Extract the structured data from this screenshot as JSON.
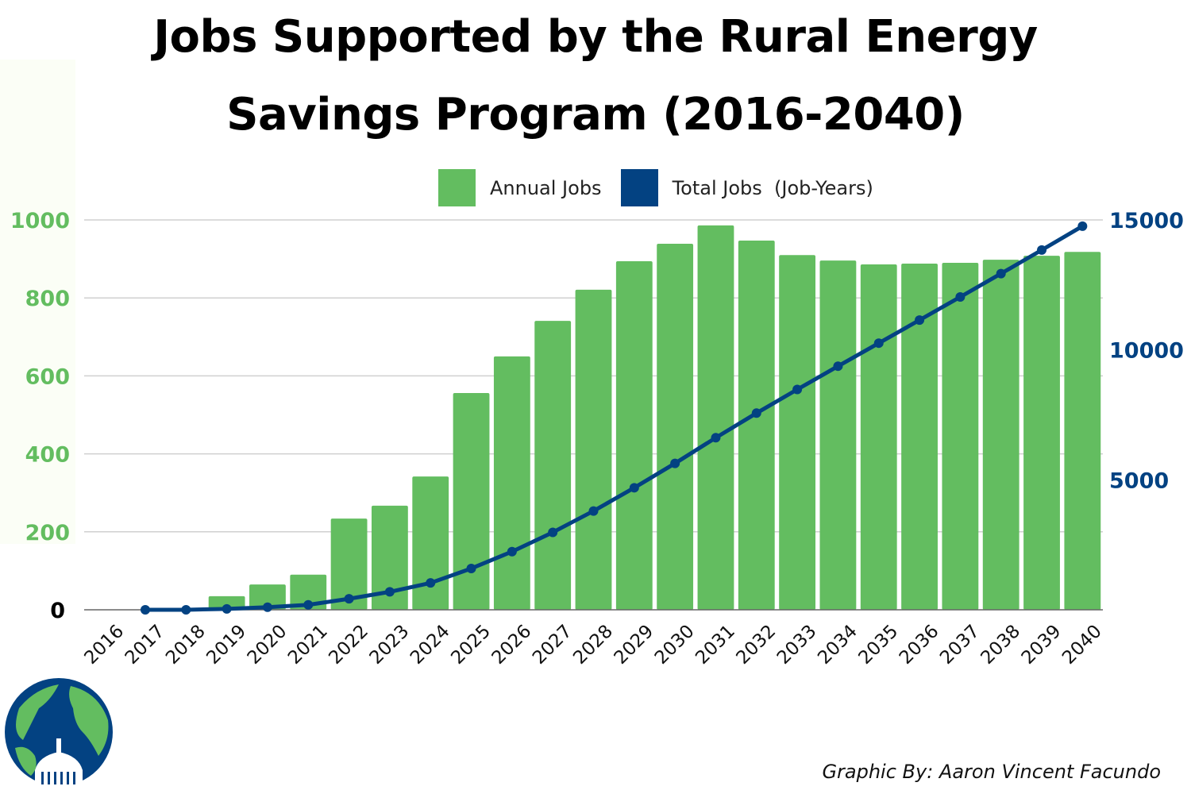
{
  "chart_data": {
    "type": "bar+line",
    "title": "Jobs Supported by the Rural Energy Savings Program (2016-2040)",
    "title_lines": [
      "Jobs Supported by the Rural Energy",
      "Savings Program (2016-2040)"
    ],
    "categories": [
      "2016",
      "2017",
      "2018",
      "2019",
      "2020",
      "2021",
      "2022",
      "2023",
      "2024",
      "2025",
      "2026",
      "2027",
      "2028",
      "2029",
      "2030",
      "2031",
      "2032",
      "2033",
      "2034",
      "2035",
      "2036",
      "2037",
      "2038",
      "2039",
      "2040"
    ],
    "series": [
      {
        "name": "Annual Jobs",
        "type": "bar",
        "axis": "left",
        "color": "#63bd60",
        "values": [
          0,
          0,
          0,
          35,
          65,
          90,
          234,
          267,
          342,
          556,
          650,
          741,
          821,
          894,
          939,
          986,
          947,
          910,
          896,
          886,
          888,
          890,
          898,
          908,
          918
        ]
      },
      {
        "name": "Total Jobs  (Job-Years)",
        "type": "line",
        "axis": "right",
        "color": "#034282",
        "values": [
          null,
          0,
          0,
          35,
          100,
          190,
          424,
          691,
          1033,
          1589,
          2239,
          2980,
          3801,
          4695,
          5634,
          6620,
          7567,
          8477,
          9373,
          10259,
          11147,
          12037,
          12935,
          13843,
          14761
        ]
      }
    ],
    "left_axis": {
      "ylim": [
        0,
        1000
      ],
      "ticks": [
        "0",
        "200",
        "400",
        "600",
        "800",
        "1000"
      ],
      "color": "#63bd60"
    },
    "right_axis": {
      "ylim": [
        0,
        15000
      ],
      "ticks": [
        "5000",
        "10000",
        "15000"
      ],
      "color": "#034282"
    },
    "grid": true,
    "legend": "top"
  },
  "credit": "Graphic By: Aaron Vincent Facundo",
  "logo": "globe-capitol-logo"
}
